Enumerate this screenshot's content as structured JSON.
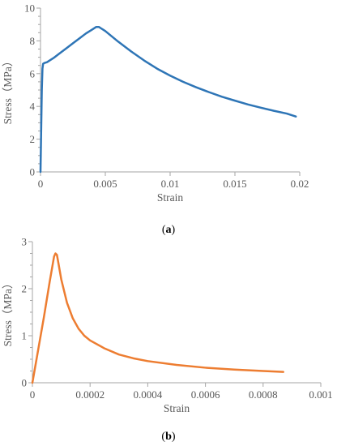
{
  "chart_data": [
    {
      "type": "line",
      "panel_label": {
        "open": "(",
        "letter": "a",
        "close": ")"
      },
      "xlabel": "Strain",
      "ylabel": "Stress（MPa）",
      "xlim": [
        0,
        0.02
      ],
      "ylim": [
        0,
        10
      ],
      "x_ticks": [
        0,
        0.005,
        0.01,
        0.015,
        0.02
      ],
      "x_tick_labels": [
        "0",
        "0.005",
        "0.01",
        "0.015",
        "0.02"
      ],
      "y_ticks": [
        0,
        2,
        4,
        6,
        8,
        10
      ],
      "y_tick_labels": [
        "0",
        "2",
        "4",
        "6",
        "8",
        "10"
      ],
      "grid": false,
      "series": [
        {
          "color": "#2e75b6",
          "x": [
            0,
            0.0001,
            0.00015,
            0.0002,
            0.0003,
            0.0005,
            0.001,
            0.0015,
            0.002,
            0.0025,
            0.003,
            0.0035,
            0.004,
            0.0043,
            0.0045,
            0.0047,
            0.005,
            0.006,
            0.007,
            0.008,
            0.009,
            0.01,
            0.011,
            0.012,
            0.013,
            0.014,
            0.015,
            0.016,
            0.017,
            0.018,
            0.019,
            0.0197
          ],
          "y": [
            0,
            5.0,
            6.3,
            6.6,
            6.65,
            6.7,
            6.95,
            7.25,
            7.55,
            7.85,
            8.15,
            8.45,
            8.7,
            8.85,
            8.85,
            8.75,
            8.6,
            7.95,
            7.35,
            6.8,
            6.3,
            5.88,
            5.5,
            5.17,
            4.87,
            4.59,
            4.35,
            4.12,
            3.92,
            3.73,
            3.56,
            3.38
          ]
        }
      ]
    },
    {
      "type": "line",
      "panel_label": {
        "open": "(",
        "letter": "b",
        "close": ")"
      },
      "xlabel": "Strain",
      "ylabel": "Stress（MPa）",
      "xlim": [
        0,
        0.001
      ],
      "ylim": [
        0,
        3
      ],
      "x_ticks": [
        0,
        0.0002,
        0.0004,
        0.0006,
        0.0008,
        0.001
      ],
      "x_tick_labels": [
        "0",
        "0.0002",
        "0.0004",
        "0.0006",
        "0.0008",
        "0.001"
      ],
      "y_ticks": [
        0,
        1,
        2,
        3
      ],
      "y_tick_labels": [
        "0",
        "1",
        "2",
        "3"
      ],
      "grid": false,
      "series": [
        {
          "color": "#ed7d31",
          "x": [
            0,
            2e-05,
            4e-05,
            6e-05,
            7.5e-05,
            8e-05,
            8.5e-05,
            9e-05,
            0.0001,
            0.00012,
            0.00014,
            0.00016,
            0.00018,
            0.0002,
            0.00025,
            0.0003,
            0.00035,
            0.0004,
            0.0005,
            0.0006,
            0.0007,
            0.0008,
            0.00087
          ],
          "y": [
            0,
            0.7,
            1.4,
            2.15,
            2.68,
            2.75,
            2.72,
            2.55,
            2.2,
            1.7,
            1.37,
            1.15,
            1.0,
            0.9,
            0.73,
            0.6,
            0.52,
            0.46,
            0.38,
            0.32,
            0.28,
            0.25,
            0.23
          ]
        }
      ]
    }
  ]
}
